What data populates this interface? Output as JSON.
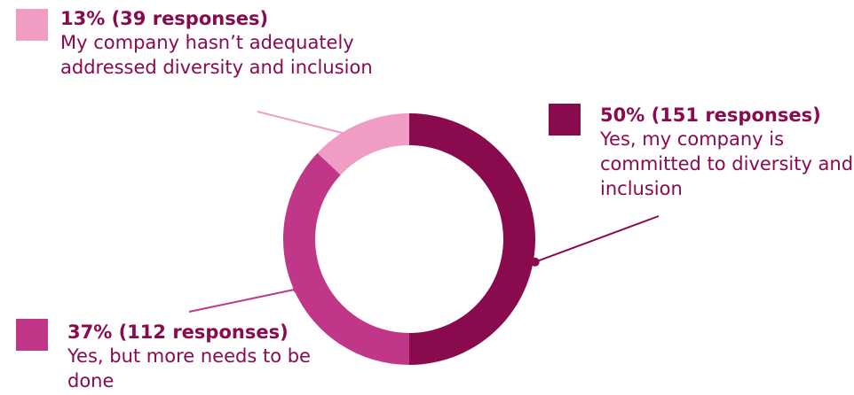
{
  "chart_data": {
    "type": "pie",
    "variant": "donut",
    "slices": [
      {
        "value_pct": 50,
        "responses": 151,
        "value_label": "50% (151 responses)",
        "description": "Yes, my company is committed to diversity and inclusion",
        "color": "#8a0a4e"
      },
      {
        "value_pct": 37,
        "responses": 112,
        "value_label": "37% (112 responses)",
        "description": "Yes, but more needs to be done",
        "color": "#c0378a"
      },
      {
        "value_pct": 13,
        "responses": 39,
        "value_label": "13% (39 responses)",
        "description": "My company hasn’t adequately addressed diversity and inclusion",
        "color": "#f09cc4"
      }
    ],
    "start_angle": "top",
    "direction": "clockwise",
    "text_color": "#8a0a4e"
  }
}
